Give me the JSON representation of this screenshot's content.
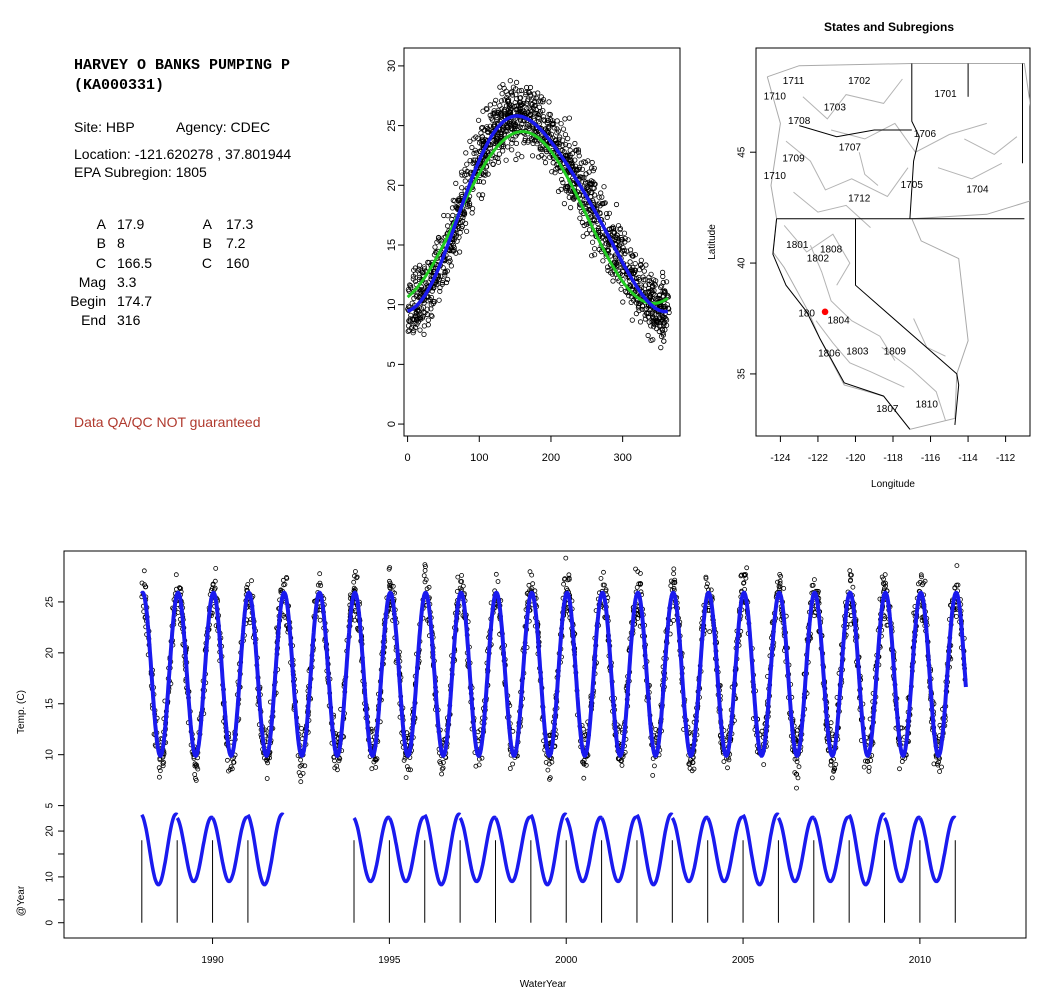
{
  "station": {
    "title_line1": "HARVEY O BANKS PUMPING P",
    "title_line2": "(KA000331)",
    "site_label": "Site: HBP",
    "agency_label": "Agency: CDEC",
    "location_label": "Location: -121.620278 , 37.801944",
    "subregion_label": "EPA Subregion: 1805",
    "params_left": [
      {
        "label": "A",
        "value": "17.9"
      },
      {
        "label": "B",
        "value": "8"
      },
      {
        "label": "C",
        "value": "166.5"
      },
      {
        "label": "Mag",
        "value": "3.3"
      },
      {
        "label": "Begin",
        "value": "174.7"
      },
      {
        "label": "End",
        "value": "316"
      }
    ],
    "params_right": [
      {
        "label": "A",
        "value": "17.3"
      },
      {
        "label": "B",
        "value": "7.2"
      },
      {
        "label": "C",
        "value": "160"
      }
    ],
    "qa_note": "Data QA/QC NOT guaranteed"
  },
  "chart_data": [
    {
      "type": "scatter",
      "id": "seasonal",
      "xlim": [
        -5,
        380
      ],
      "ylim": [
        -1,
        31.5
      ],
      "xticks": [
        "0",
        "100",
        "200",
        "300"
      ],
      "yticks": [
        "0",
        "5",
        "10",
        "15",
        "20",
        "25",
        "30"
      ],
      "fit_green": {
        "mean": 17.3,
        "amp": 7.2,
        "phase_day": 160
      },
      "fit_blue": {
        "mean": 17.9,
        "amp": 8,
        "phase_day": 166.5
      },
      "point_color": "#000000",
      "green_color": "#22cc22",
      "blue_color": "#1a1aee"
    },
    {
      "type": "map",
      "id": "subregions",
      "title": "States and Subregions",
      "xlabel": "Longitude",
      "ylabel": "Latitude",
      "xlim": [
        -125.3,
        -110.7
      ],
      "ylim": [
        32.2,
        49.7
      ],
      "xticks": [
        "-124",
        "-122",
        "-120",
        "-118",
        "-116",
        "-114",
        "-112"
      ],
      "yticks": [
        "35",
        "40",
        "45"
      ],
      "station_point": {
        "lon": -121.620278,
        "lat": 37.801944,
        "color": "#ff0000"
      },
      "region_labels": [
        {
          "text": "1702",
          "lon": -119.8,
          "lat": 48.2
        },
        {
          "text": "1701",
          "lon": -115.2,
          "lat": 47.6
        },
        {
          "text": "1711",
          "lon": -123.3,
          "lat": 48.2
        },
        {
          "text": "1710",
          "lon": -124.3,
          "lat": 47.5
        },
        {
          "text": "1703",
          "lon": -121.1,
          "lat": 47.0
        },
        {
          "text": "1708",
          "lon": -123.0,
          "lat": 46.4
        },
        {
          "text": "1706",
          "lon": -116.3,
          "lat": 45.8
        },
        {
          "text": "1707",
          "lon": -120.3,
          "lat": 45.2
        },
        {
          "text": "1709",
          "lon": -123.3,
          "lat": 44.7
        },
        {
          "text": "1710",
          "lon": -124.3,
          "lat": 43.9
        },
        {
          "text": "1705",
          "lon": -117.0,
          "lat": 43.5
        },
        {
          "text": "1704",
          "lon": -113.5,
          "lat": 43.3
        },
        {
          "text": "1712",
          "lon": -119.8,
          "lat": 42.9
        },
        {
          "text": "1801",
          "lon": -123.1,
          "lat": 40.8
        },
        {
          "text": "1808",
          "lon": -121.3,
          "lat": 40.6
        },
        {
          "text": "1802",
          "lon": -122.0,
          "lat": 40.2
        },
        {
          "text": "180",
          "lon": -122.6,
          "lat": 37.7
        },
        {
          "text": "1804",
          "lon": -120.9,
          "lat": 37.4
        },
        {
          "text": "1806",
          "lon": -121.4,
          "lat": 35.9
        },
        {
          "text": "1803",
          "lon": -119.9,
          "lat": 36.0
        },
        {
          "text": "1809",
          "lon": -117.9,
          "lat": 36.0
        },
        {
          "text": "1807",
          "lon": -118.3,
          "lat": 33.4
        },
        {
          "text": "1810",
          "lon": -116.2,
          "lat": 33.6
        }
      ]
    },
    {
      "type": "line",
      "id": "timeseries",
      "xlabel": "WaterYear",
      "ylabel": "Temp. (C)",
      "ylabel2": "@Year",
      "xlim": [
        1985.8,
        2013.0
      ],
      "ylim": [
        -8,
        30
      ],
      "xticks": [
        "1990",
        "1995",
        "2000",
        "2005",
        "2010"
      ],
      "yticks_main": [
        "5",
        "10",
        "15",
        "20",
        "25"
      ],
      "yticks_lower": [
        "0",
        "10",
        "20"
      ],
      "data_start": 1988.0,
      "data_end": 2011.3,
      "mean": 17.9,
      "amp": 8,
      "gap": [
        1992.0,
        1994.0
      ],
      "annual_segments": [
        1988,
        1989,
        1990,
        1991,
        1994,
        1995,
        1996,
        1997,
        1998,
        1999,
        2000,
        2001,
        2002,
        2003,
        2004,
        2005,
        2006,
        2007,
        2008,
        2009,
        2010
      ]
    }
  ]
}
